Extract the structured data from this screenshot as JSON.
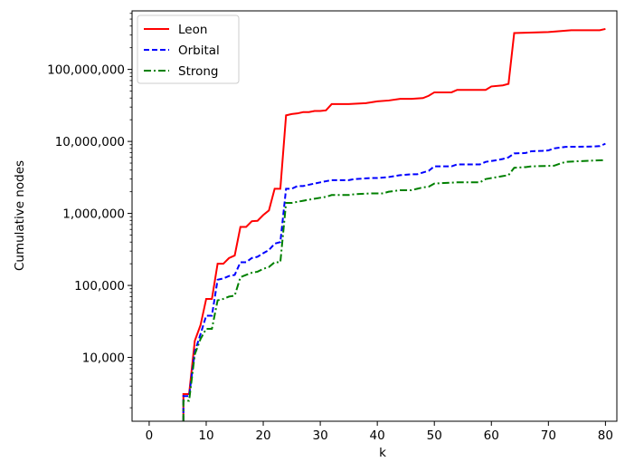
{
  "chart_data": {
    "type": "line",
    "title": "",
    "xlabel": "k",
    "ylabel": "Cumulative nodes",
    "xlim": [
      -3,
      82
    ],
    "ylim": [
      1300,
      650000000
    ],
    "yscale": "log",
    "grid": false,
    "legend_position": "top-left",
    "x_ticks": [
      {
        "value": 0,
        "label": "0"
      },
      {
        "value": 10,
        "label": "10"
      },
      {
        "value": 20,
        "label": "20"
      },
      {
        "value": 30,
        "label": "30"
      },
      {
        "value": 40,
        "label": "40"
      },
      {
        "value": 50,
        "label": "50"
      },
      {
        "value": 60,
        "label": "60"
      },
      {
        "value": 70,
        "label": "70"
      },
      {
        "value": 80,
        "label": "80"
      }
    ],
    "y_ticks": [
      {
        "value": 10000,
        "label": "10,000"
      },
      {
        "value": 100000,
        "label": "100,000"
      },
      {
        "value": 1000000,
        "label": "1,000,000"
      },
      {
        "value": 10000000,
        "label": "10,000,000"
      },
      {
        "value": 100000000,
        "label": "100,000,000"
      }
    ],
    "series": [
      {
        "name": "Leon",
        "color": "#ff0000",
        "dash": "solid",
        "points": [
          [
            6,
            1300
          ],
          [
            6,
            3100
          ],
          [
            7,
            3100
          ],
          [
            8,
            17000
          ],
          [
            9,
            28000
          ],
          [
            10,
            65000
          ],
          [
            11,
            65000
          ],
          [
            12,
            200000
          ],
          [
            13,
            200000
          ],
          [
            14,
            240000
          ],
          [
            15,
            260000
          ],
          [
            16,
            650000
          ],
          [
            17,
            650000
          ],
          [
            18,
            780000
          ],
          [
            19,
            790000
          ],
          [
            20,
            950000
          ],
          [
            21,
            1100000
          ],
          [
            22,
            2200000
          ],
          [
            23,
            2200000
          ],
          [
            24,
            23000000
          ],
          [
            25,
            24000000
          ],
          [
            26,
            24500000
          ],
          [
            27,
            25500000
          ],
          [
            28,
            25500000
          ],
          [
            29,
            26500000
          ],
          [
            30,
            26500000
          ],
          [
            31,
            27000000
          ],
          [
            32,
            33000000
          ],
          [
            35,
            33000000
          ],
          [
            38,
            34000000
          ],
          [
            40,
            36000000
          ],
          [
            42,
            37000000
          ],
          [
            44,
            39000000
          ],
          [
            46,
            39000000
          ],
          [
            48,
            40000000
          ],
          [
            49,
            43000000
          ],
          [
            50,
            48000000
          ],
          [
            53,
            48000000
          ],
          [
            54,
            52000000
          ],
          [
            59,
            52000000
          ],
          [
            60,
            58000000
          ],
          [
            62,
            60000000
          ],
          [
            63,
            63000000
          ],
          [
            64,
            320000000
          ],
          [
            70,
            330000000
          ],
          [
            72,
            340000000
          ],
          [
            74,
            350000000
          ],
          [
            79,
            350000000
          ],
          [
            80,
            365000000
          ]
        ]
      },
      {
        "name": "Orbital",
        "color": "#0000ff",
        "dash": "dashed",
        "points": [
          [
            6,
            1300
          ],
          [
            6,
            2900
          ],
          [
            7,
            2900
          ],
          [
            8,
            12000
          ],
          [
            9,
            21000
          ],
          [
            10,
            38000
          ],
          [
            11,
            38000
          ],
          [
            12,
            120000
          ],
          [
            13,
            125000
          ],
          [
            14,
            135000
          ],
          [
            15,
            140000
          ],
          [
            16,
            210000
          ],
          [
            17,
            210000
          ],
          [
            18,
            240000
          ],
          [
            19,
            250000
          ],
          [
            20,
            280000
          ],
          [
            21,
            310000
          ],
          [
            22,
            380000
          ],
          [
            23,
            400000
          ],
          [
            24,
            2200000
          ],
          [
            25,
            2200000
          ],
          [
            26,
            2400000
          ],
          [
            27,
            2400000
          ],
          [
            28,
            2500000
          ],
          [
            29,
            2600000
          ],
          [
            30,
            2700000
          ],
          [
            31,
            2800000
          ],
          [
            32,
            2900000
          ],
          [
            35,
            2900000
          ],
          [
            36,
            3000000
          ],
          [
            39,
            3100000
          ],
          [
            40,
            3100000
          ],
          [
            42,
            3200000
          ],
          [
            44,
            3400000
          ],
          [
            46,
            3500000
          ],
          [
            47,
            3500000
          ],
          [
            48,
            3700000
          ],
          [
            49,
            3900000
          ],
          [
            50,
            4500000
          ],
          [
            53,
            4500000
          ],
          [
            54,
            4800000
          ],
          [
            58,
            4800000
          ],
          [
            59,
            5200000
          ],
          [
            61,
            5500000
          ],
          [
            62,
            5700000
          ],
          [
            63,
            6000000
          ],
          [
            64,
            6800000
          ],
          [
            66,
            6900000
          ],
          [
            67,
            7300000
          ],
          [
            69,
            7400000
          ],
          [
            70,
            7500000
          ],
          [
            71,
            8000000
          ],
          [
            73,
            8400000
          ],
          [
            78,
            8500000
          ],
          [
            79,
            8600000
          ],
          [
            80,
            9300000
          ]
        ]
      },
      {
        "name": "Strong",
        "color": "#008000",
        "dash": "dashdot",
        "points": [
          [
            6,
            1300
          ],
          [
            6,
            2500
          ],
          [
            7,
            2500
          ],
          [
            8,
            11000
          ],
          [
            9,
            18000
          ],
          [
            10,
            25000
          ],
          [
            11,
            25000
          ],
          [
            12,
            62000
          ],
          [
            13,
            65000
          ],
          [
            14,
            70000
          ],
          [
            15,
            72000
          ],
          [
            16,
            130000
          ],
          [
            17,
            140000
          ],
          [
            18,
            150000
          ],
          [
            19,
            155000
          ],
          [
            20,
            170000
          ],
          [
            21,
            180000
          ],
          [
            22,
            210000
          ],
          [
            23,
            210000
          ],
          [
            24,
            1400000
          ],
          [
            25,
            1400000
          ],
          [
            26,
            1450000
          ],
          [
            27,
            1500000
          ],
          [
            28,
            1550000
          ],
          [
            29,
            1600000
          ],
          [
            30,
            1650000
          ],
          [
            31,
            1700000
          ],
          [
            32,
            1800000
          ],
          [
            35,
            1800000
          ],
          [
            36,
            1850000
          ],
          [
            39,
            1900000
          ],
          [
            41,
            1900000
          ],
          [
            42,
            2000000
          ],
          [
            44,
            2100000
          ],
          [
            46,
            2100000
          ],
          [
            47,
            2200000
          ],
          [
            48,
            2300000
          ],
          [
            49,
            2350000
          ],
          [
            50,
            2600000
          ],
          [
            54,
            2700000
          ],
          [
            58,
            2700000
          ],
          [
            59,
            3000000
          ],
          [
            61,
            3200000
          ],
          [
            62,
            3300000
          ],
          [
            63,
            3400000
          ],
          [
            64,
            4300000
          ],
          [
            66,
            4400000
          ],
          [
            67,
            4500000
          ],
          [
            71,
            4600000
          ],
          [
            72,
            4900000
          ],
          [
            73,
            5200000
          ],
          [
            75,
            5300000
          ],
          [
            80,
            5500000
          ]
        ]
      }
    ]
  }
}
